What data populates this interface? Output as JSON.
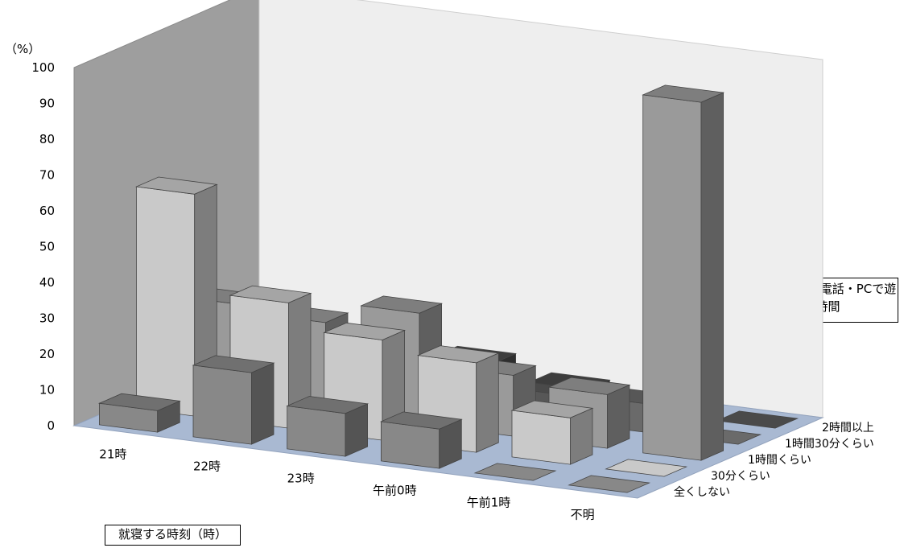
{
  "chart_data": {
    "type": "bar",
    "style": "3d-column",
    "ylabel": "（%）",
    "ylim": [
      0,
      100
    ],
    "yticks": [
      0,
      10,
      20,
      30,
      40,
      50,
      60,
      70,
      80,
      90,
      100
    ],
    "xlabel": "就寝する時刻（時）",
    "zlabel": "テレビ・携帯電話・PCで遊ぶ時間",
    "categories": [
      "21時",
      "22時",
      "23時",
      "午前0時",
      "午前1時",
      "不明"
    ],
    "series": [
      {
        "name": "全くしない",
        "color": "#888888",
        "values": [
          6,
          20,
          12,
          11,
          0,
          0
        ]
      },
      {
        "name": "30分くらい",
        "color": "#c9c9c9",
        "values": [
          62,
          35,
          28,
          25,
          13,
          0
        ]
      },
      {
        "name": "1時間くらい",
        "color": "#9a9a9a",
        "values": [
          27,
          25,
          31,
          17,
          15,
          100
        ]
      },
      {
        "name": "1時間30分くらい",
        "color": "#6a6a6a",
        "values": [
          4,
          2,
          12,
          4,
          8,
          0
        ]
      },
      {
        "name": "2時間以上",
        "color": "#4a4a4a",
        "values": [
          0,
          4,
          8,
          4,
          0,
          0
        ]
      }
    ],
    "grid": false,
    "legend": "none"
  }
}
